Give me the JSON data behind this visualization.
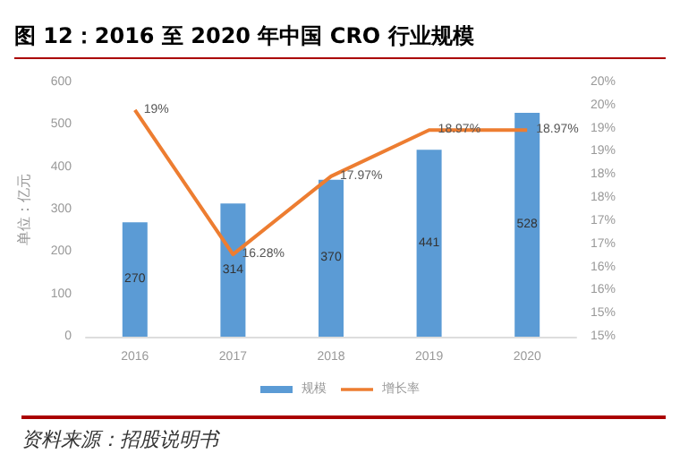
{
  "chart_data": {
    "type": "bar",
    "title": "图 12：2016 至 2020 年中国 CRO 行业规模",
    "ylabel": "单位：亿元",
    "annotations": [
      "资料来源：招股说明书"
    ],
    "categories": [
      "2016",
      "2017",
      "2018",
      "2019",
      "2020"
    ],
    "series": [
      {
        "name": "规模",
        "color": "#5b9bd5",
        "values": [
          270,
          314,
          370,
          441,
          528
        ]
      },
      {
        "name": "增长率",
        "type": "line",
        "axis": "y2",
        "color": "#ed7d31",
        "values": [
          19.4,
          16.28,
          17.97,
          18.97,
          18.97
        ],
        "value_labels": [
          "19%",
          "16.28%",
          "17.97%",
          "18.97%",
          "18.97%"
        ]
      }
    ],
    "ylim": [
      0,
      600
    ],
    "yticks": [
      0,
      100,
      200,
      300,
      400,
      500,
      600
    ],
    "y2lim": [
      14.5,
      20
    ],
    "y2ticks": [
      {
        "value": 14.5,
        "label": "15%"
      },
      {
        "value": 15,
        "label": "15%"
      },
      {
        "value": 15.5,
        "label": "16%"
      },
      {
        "value": 16,
        "label": "16%"
      },
      {
        "value": 16.5,
        "label": "17%"
      },
      {
        "value": 17,
        "label": "17%"
      },
      {
        "value": 17.5,
        "label": "18%"
      },
      {
        "value": 18,
        "label": "18%"
      },
      {
        "value": 18.5,
        "label": "19%"
      },
      {
        "value": 19,
        "label": "19%"
      },
      {
        "value": 19.5,
        "label": "20%"
      },
      {
        "value": 20,
        "label": "20%"
      }
    ],
    "data_labels": true,
    "legend": "bottom",
    "grid": false,
    "marker": "none"
  }
}
